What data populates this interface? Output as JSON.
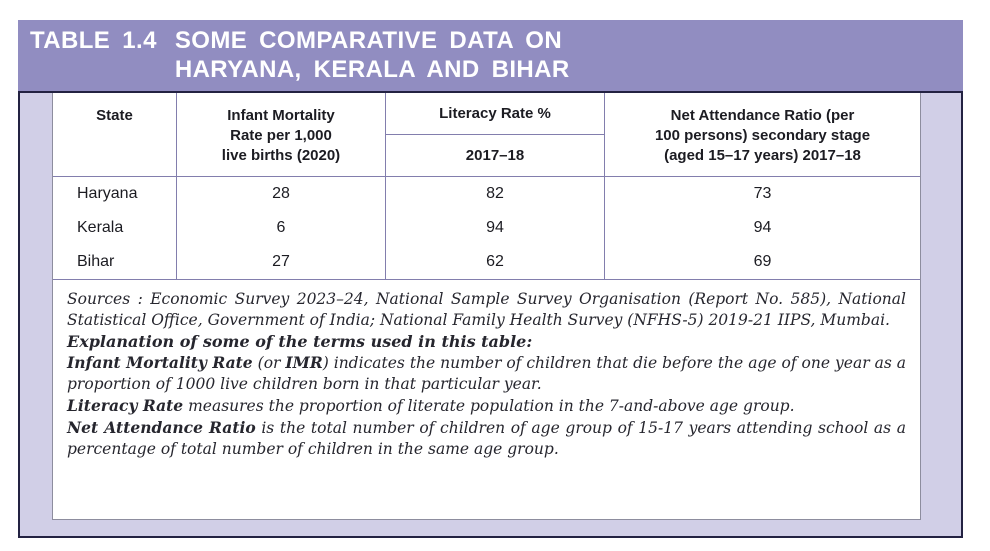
{
  "title": {
    "label": "TABLE 1.4",
    "line1": "SOME COMPARATIVE DATA ON",
    "line2": "HARYANA, KERALA AND BIHAR"
  },
  "table": {
    "headers": {
      "state": "State",
      "imr_lines": [
        "Infant Mortality",
        "Rate per 1,000",
        "live births (2020)"
      ],
      "literacy_top": "Literacy Rate %",
      "literacy_sub": "2017–18",
      "nar_lines": [
        "Net Attendance Ratio (per",
        "100 persons) secondary stage",
        "(aged 15–17 years) 2017–18"
      ]
    },
    "rows": [
      {
        "state": "Haryana",
        "imr": "28",
        "literacy": "82",
        "nar": "73"
      },
      {
        "state": "Kerala",
        "imr": "6",
        "literacy": "94",
        "nar": "94"
      },
      {
        "state": "Bihar",
        "imr": "27",
        "literacy": "62",
        "nar": "69"
      }
    ]
  },
  "notes": {
    "sources": "Sources : Economic Survey 2023–24, National Sample Survey Organisation (Report No. 585), National Statistical Office, Government of India; National Family Health Survey (NFHS-5) 2019-21 IIPS, Mumbai.",
    "explanation_heading": "Explanation of some of the terms used in this table:",
    "imr": {
      "bold1": "Infant Mortality Rate",
      "text1": " (or ",
      "bold2": "IMR",
      "text2": ") indicates the number of children that die before the age of one year as a proportion of 1000 live children born in that particular year."
    },
    "literacy": {
      "bold1": "Literacy Rate",
      "text2": " measures the proportion of literate population in the 7-and-above age group."
    },
    "nar": {
      "bold1": "Net Attendance Ratio",
      "text2": " is the total number of children of age group of 15-17 years attending school as a percentage of total number of children in the same age group."
    }
  },
  "colors": {
    "titlebar": "#918dc1",
    "band": "#d1cfe7",
    "frame": "#232242",
    "grid": "#827ead"
  }
}
